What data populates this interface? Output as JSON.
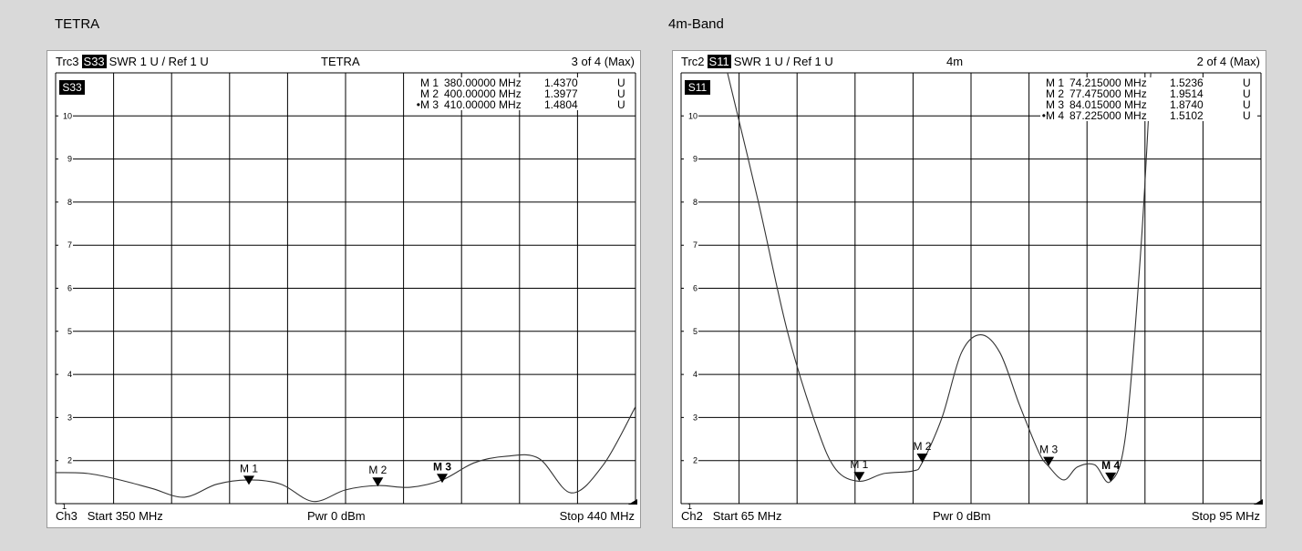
{
  "sections": [
    {
      "title": "TETRA",
      "header": {
        "trace": "Trc3",
        "param": "S33",
        "scale": "SWR  1 U /  Ref 1 U",
        "center": "TETRA",
        "count": "3 of 4 (Max)"
      },
      "footer": {
        "channel": "Ch3",
        "start": "Start  350 MHz",
        "power": "Pwr  0 dBm",
        "stop": "Stop  440 MHz"
      }
    },
    {
      "title": "4m-Band",
      "header": {
        "trace": "Trc2",
        "param": "S11",
        "scale": "SWR  1 U /  Ref 1 U",
        "center": "4m",
        "count": "2 of 4 (Max)"
      },
      "footer": {
        "channel": "Ch2",
        "start": "Start  65 MHz",
        "power": "Pwr  0 dBm",
        "stop": "Stop  95 MHz"
      }
    }
  ],
  "chart_data": [
    {
      "type": "line",
      "param_label": "S33",
      "xlim": [
        350,
        440
      ],
      "ylim": [
        1,
        11
      ],
      "y_ticks": [
        2,
        3,
        4,
        5,
        6,
        7,
        8,
        9,
        10
      ],
      "x_divisions": 10,
      "y_divisions": 10,
      "grid": true,
      "series": [
        {
          "x": [
            350,
            355,
            360,
            365,
            370,
            375,
            380,
            385,
            390,
            395,
            400,
            405,
            410,
            415,
            420,
            425,
            430,
            435,
            440
          ],
          "y": [
            1.72,
            1.7,
            1.55,
            1.35,
            1.15,
            1.45,
            1.55,
            1.45,
            1.05,
            1.32,
            1.42,
            1.38,
            1.55,
            1.95,
            2.1,
            2.05,
            1.25,
            1.9,
            3.25
          ]
        }
      ],
      "markers": [
        {
          "label": "M 1",
          "x": 380,
          "y": 1.437,
          "readout": {
            "id": "M 1",
            "freq": "380.00000 MHz",
            "value": "1.4370",
            "unit": "U"
          }
        },
        {
          "label": "M 2",
          "x": 400,
          "y": 1.3977,
          "readout": {
            "id": "M 2",
            "freq": "400.00000 MHz",
            "value": "1.3977",
            "unit": "U"
          }
        },
        {
          "label": "M 3",
          "x": 410,
          "y": 1.4804,
          "active": true,
          "readout": {
            "id": "•M 3",
            "freq": "410.00000 MHz",
            "value": "1.4804",
            "unit": "U"
          }
        }
      ]
    },
    {
      "type": "line",
      "param_label": "S11",
      "xlim": [
        65,
        95
      ],
      "ylim": [
        1,
        11
      ],
      "y_ticks": [
        2,
        3,
        4,
        5,
        6,
        7,
        8,
        9,
        10
      ],
      "x_divisions": 10,
      "y_divisions": 10,
      "grid": true,
      "series": [
        {
          "x": [
            67.4,
            69,
            70.5,
            72,
            73,
            74.2,
            75.5,
            77.0,
            77.47,
            78.5,
            79.5,
            80.5,
            81.5,
            82.5,
            83.5,
            84.0,
            84.8,
            85.5,
            86.4,
            87.2,
            88.0,
            88.8,
            89.3
          ],
          "y": [
            11,
            8.0,
            5.0,
            2.8,
            1.8,
            1.52,
            1.7,
            1.76,
            1.95,
            3.0,
            4.5,
            4.92,
            4.5,
            3.3,
            2.2,
            1.874,
            1.55,
            1.85,
            1.9,
            1.51,
            2.6,
            7.0,
            11
          ]
        }
      ],
      "markers": [
        {
          "label": "M 1",
          "x": 74.215,
          "y": 1.5236,
          "readout": {
            "id": "M 1",
            "freq": "74.215000 MHz",
            "value": "1.5236",
            "unit": "U"
          }
        },
        {
          "label": "M 2",
          "x": 77.475,
          "y": 1.9514,
          "readout": {
            "id": "M 2",
            "freq": "77.475000 MHz",
            "value": "1.9514",
            "unit": "U"
          }
        },
        {
          "label": "M 3",
          "x": 84.015,
          "y": 1.874,
          "readout": {
            "id": "M 3",
            "freq": "84.015000 MHz",
            "value": "1.8740",
            "unit": "U"
          }
        },
        {
          "label": "M 4",
          "x": 87.225,
          "y": 1.5102,
          "active": true,
          "readout": {
            "id": "•M 4",
            "freq": "87.225000 MHz",
            "value": "1.5102",
            "unit": "U"
          }
        }
      ]
    }
  ]
}
